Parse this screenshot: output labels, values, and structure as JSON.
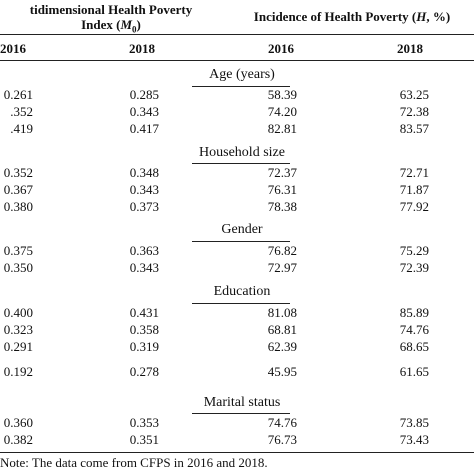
{
  "header": {
    "mpi_line1": "tidimensional Health Poverty",
    "mpi_line2_prefix": "Index (",
    "mpi_symbol": "M",
    "mpi_subscript": "0",
    "mpi_line2_suffix": ")",
    "inc_prefix": "Incidence of Health Poverty (",
    "inc_symbol": "H",
    "inc_suffix": ", %)",
    "years": [
      "2016",
      "2018",
      "2016",
      "2018"
    ]
  },
  "groups": [
    {
      "label": "Age (years)",
      "rows": [
        [
          "0.261",
          "0.285",
          "58.39",
          "63.25"
        ],
        [
          ".352",
          "0.343",
          "74.20",
          "72.38"
        ],
        [
          ".419",
          "0.417",
          "82.81",
          "83.57"
        ]
      ]
    },
    {
      "label": "Household size",
      "rows": [
        [
          "0.352",
          "0.348",
          "72.37",
          "72.71"
        ],
        [
          "0.367",
          "0.343",
          "76.31",
          "71.87"
        ],
        [
          "0.380",
          "0.373",
          "78.38",
          "77.92"
        ]
      ]
    },
    {
      "label": "Gender",
      "rows": [
        [
          "0.375",
          "0.363",
          "76.82",
          "75.29"
        ],
        [
          "0.350",
          "0.343",
          "72.97",
          "72.39"
        ]
      ]
    },
    {
      "label": "Education",
      "rows": [
        [
          "0.400",
          "0.431",
          "81.08",
          "85.89"
        ],
        [
          "0.323",
          "0.358",
          "68.81",
          "74.76"
        ],
        [
          "0.291",
          "0.319",
          "62.39",
          "68.65"
        ],
        [
          "0.192",
          "0.278",
          "45.95",
          "61.65"
        ]
      ]
    },
    {
      "label": "Marital status",
      "rows": [
        [
          "0.360",
          "0.353",
          "74.76",
          "73.85"
        ],
        [
          "0.382",
          "0.351",
          "76.73",
          "73.43"
        ]
      ]
    }
  ],
  "note": "Note: The data come from CFPS in 2016 and 2018."
}
